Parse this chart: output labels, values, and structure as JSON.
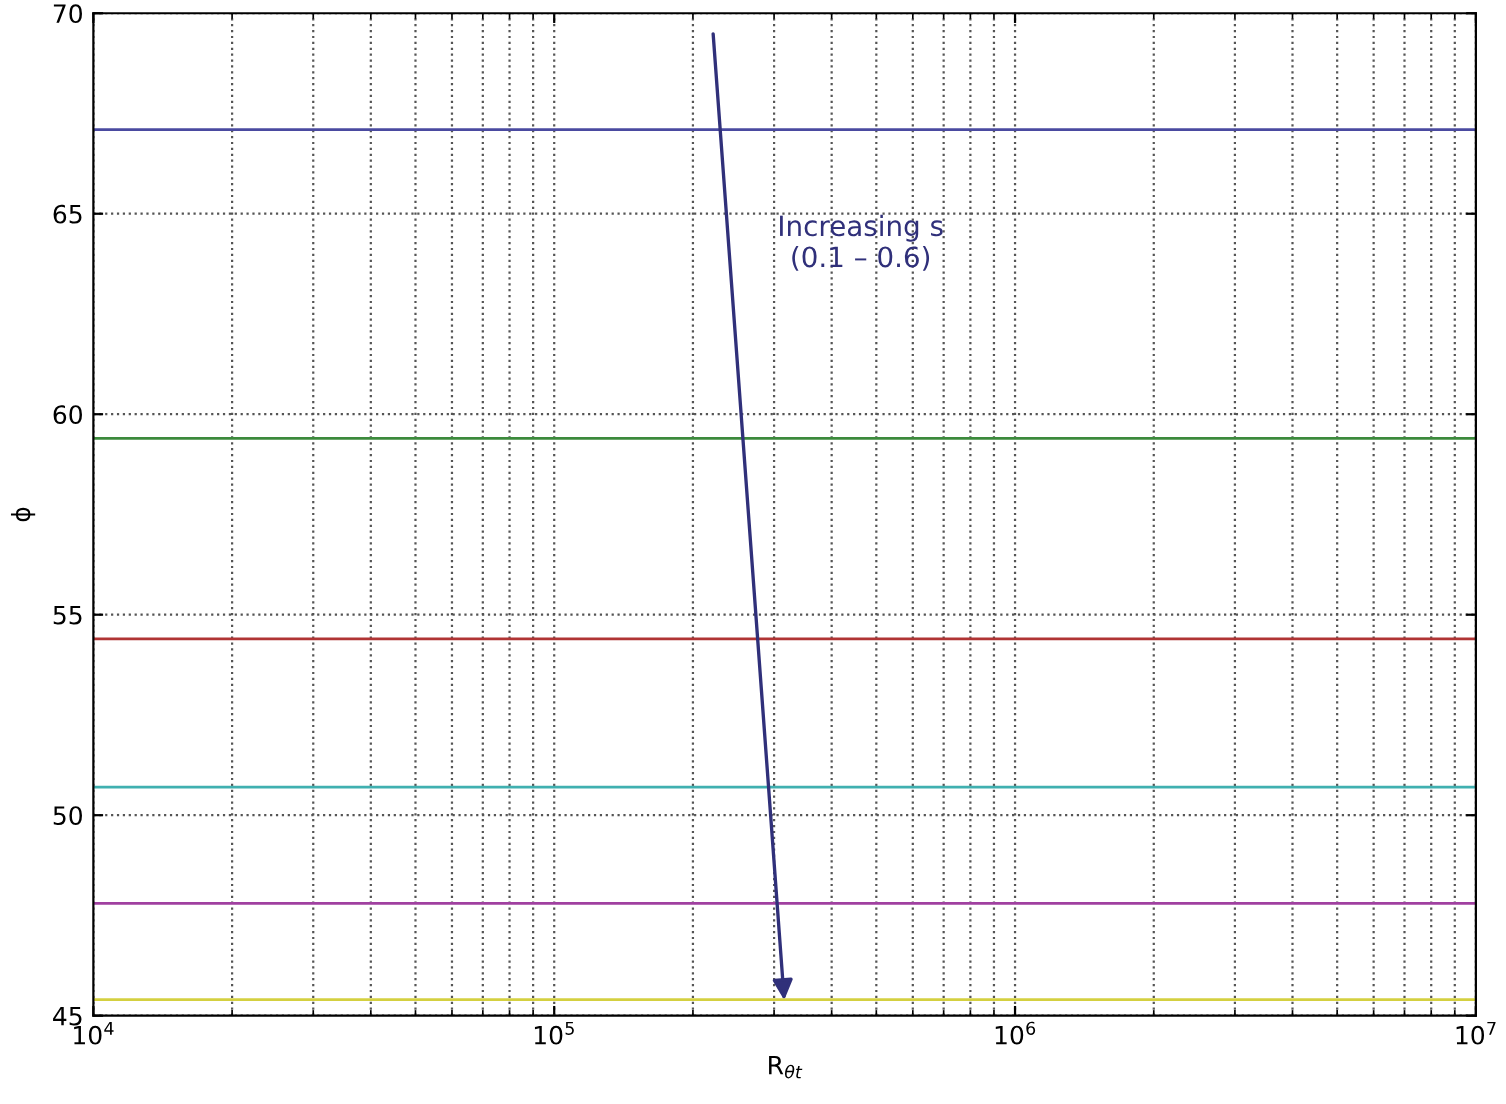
{
  "chart_data": {
    "type": "line",
    "xlabel": "R$_{θt}$",
    "ylabel": "ϕ",
    "log": "x",
    "grid": true,
    "marker": "none",
    "line_style": "solid",
    "xlim": [
      10000,
      10000000
    ],
    "ylim": [
      45,
      70
    ],
    "xticks": [
      {
        "value": 10000,
        "label": "10$^{4}$"
      },
      {
        "value": 100000,
        "label": "10$^{5}$"
      },
      {
        "value": 1000000,
        "label": "10$^{6}$"
      },
      {
        "value": 10000000,
        "label": "10$^{7}$"
      }
    ],
    "yticks": [
      45,
      50,
      55,
      60,
      65,
      70
    ],
    "x": [
      10000,
      10000000
    ],
    "series": [
      {
        "color": "#4a4aa0",
        "values": [
          67.1,
          67.1
        ]
      },
      {
        "color": "#3c8a3c",
        "values": [
          59.4,
          59.4
        ]
      },
      {
        "color": "#b03434",
        "values": [
          54.4,
          54.4
        ]
      },
      {
        "color": "#40b0b0",
        "values": [
          50.7,
          50.7
        ]
      },
      {
        "color": "#a040a0",
        "values": [
          47.8,
          47.8
        ]
      },
      {
        "color": "#d4d040",
        "values": [
          45.4,
          45.4
        ]
      }
    ],
    "annotations": [
      "Increasing s\n(0.1 – 0.6)"
    ]
  }
}
